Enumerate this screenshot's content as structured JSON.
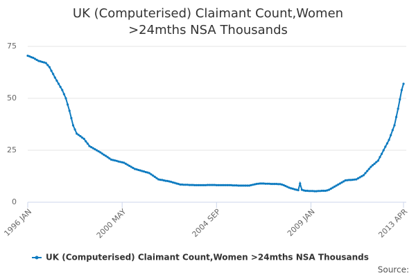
{
  "chart_data": {
    "type": "line",
    "title": "UK (Computerised) Claimant Count,Women >24mths NSA Thousands",
    "source": "Source:",
    "categories": [
      "1996 JAN",
      null,
      null,
      null,
      null,
      null,
      null,
      null,
      null,
      null,
      null,
      null,
      null,
      null,
      null,
      null,
      null,
      null,
      null,
      null,
      null,
      null,
      null,
      null,
      null,
      null,
      null,
      null,
      null,
      null,
      null,
      null,
      null,
      null,
      null,
      null,
      null,
      null,
      null,
      null,
      null,
      null,
      null,
      null,
      null,
      null,
      null,
      null,
      null,
      null,
      null,
      null,
      "2000 MAY",
      null,
      null,
      null,
      null,
      null,
      null,
      null,
      null,
      null,
      null,
      null,
      null,
      null,
      null,
      null,
      null,
      null,
      null,
      null,
      null,
      null,
      null,
      null,
      null,
      null,
      null,
      null,
      null,
      null,
      null,
      null,
      null,
      null,
      null,
      null,
      null,
      null,
      null,
      null,
      null,
      null,
      null,
      null,
      null,
      null,
      null,
      null,
      null,
      null,
      null,
      null,
      "2004 SEP",
      null,
      null,
      null,
      null,
      null,
      null,
      null,
      null,
      null,
      null,
      null,
      null,
      null,
      null,
      null,
      null,
      null,
      null,
      null,
      null,
      null,
      null,
      null,
      null,
      null,
      null,
      null,
      null,
      null,
      null,
      null,
      null,
      null,
      null,
      null,
      null,
      null,
      null,
      null,
      null,
      null,
      null,
      null,
      null,
      null,
      null,
      null,
      null,
      null,
      null,
      null,
      "2009 JAN",
      null,
      null,
      null,
      null,
      null,
      null,
      null,
      null,
      null,
      null,
      null,
      null,
      null,
      null,
      null,
      null,
      null,
      null,
      null,
      null,
      null,
      null,
      null,
      null,
      null,
      null,
      null,
      null,
      null,
      null,
      null,
      null,
      null,
      null,
      null,
      null,
      null,
      null,
      null,
      null,
      null,
      null,
      null,
      null,
      null,
      null,
      null,
      null,
      null,
      null,
      "2013 APR"
    ],
    "series": [
      {
        "name": "UK (Computerised) Claimant Count,Women >24mths NSA Thousands",
        "color": "#0e7bc0",
        "values": [
          70.5,
          70.2,
          69.8,
          69.5,
          69,
          68.5,
          68,
          67.8,
          67.5,
          67.3,
          67,
          66,
          65,
          63.3,
          61.7,
          60,
          58.5,
          57,
          55.5,
          54,
          52,
          50,
          47,
          44,
          40.5,
          37,
          35,
          33,
          32.4,
          31.8,
          31.1,
          30.5,
          29.3,
          28.2,
          27,
          26.5,
          26,
          25.5,
          25,
          24.5,
          24,
          23.4,
          22.8,
          22.3,
          21.7,
          21.1,
          20.5,
          20.3,
          20.1,
          19.9,
          19.6,
          19.4,
          19.2,
          19,
          18.5,
          18,
          17.5,
          17,
          16.5,
          16,
          15.8,
          15.5,
          15.3,
          15,
          14.8,
          14.5,
          14.3,
          14,
          13.4,
          12.8,
          12.2,
          11.6,
          11,
          10.8,
          10.7,
          10.5,
          10.3,
          10.2,
          10,
          9.8,
          9.5,
          9.3,
          9,
          8.8,
          8.5,
          8.5,
          8.4,
          8.4,
          8.4,
          8.3,
          8.3,
          8.3,
          8.2,
          8.2,
          8.2,
          8.2,
          8.2,
          8.2,
          8.2,
          8.3,
          8.3,
          8.3,
          8.3,
          8.3,
          8.2,
          8.2,
          8.2,
          8.2,
          8.2,
          8.2,
          8.2,
          8.2,
          8.2,
          8.1,
          8.1,
          8.1,
          8,
          8,
          8,
          8,
          8,
          8,
          8,
          8.2,
          8.4,
          8.6,
          8.8,
          8.9,
          9,
          9,
          9,
          8.9,
          8.9,
          8.9,
          8.8,
          8.8,
          8.8,
          8.8,
          8.7,
          8.7,
          8.5,
          8.2,
          7.8,
          7.4,
          7,
          6.7,
          6.5,
          6.2,
          6,
          5.8,
          9,
          6,
          5.7,
          5.5,
          5.5,
          5.4,
          5.4,
          5.4,
          5.3,
          5.3,
          5.4,
          5.4,
          5.5,
          5.5,
          5.5,
          5.7,
          6,
          6.5,
          7,
          7.5,
          8,
          8.5,
          9,
          9.5,
          10,
          10.5,
          10.6,
          10.7,
          10.7,
          10.8,
          10.9,
          11,
          11.5,
          12,
          12.5,
          13,
          14,
          15,
          16,
          17,
          17.8,
          18.5,
          19.3,
          20,
          21.7,
          23.3,
          25,
          26.7,
          28.3,
          30,
          32.3,
          34.7,
          37,
          41,
          45,
          49.5,
          54,
          57
        ]
      }
    ],
    "ylim": [
      0,
      75
    ],
    "yticks": [
      0,
      25,
      50,
      75
    ],
    "grid": true
  }
}
